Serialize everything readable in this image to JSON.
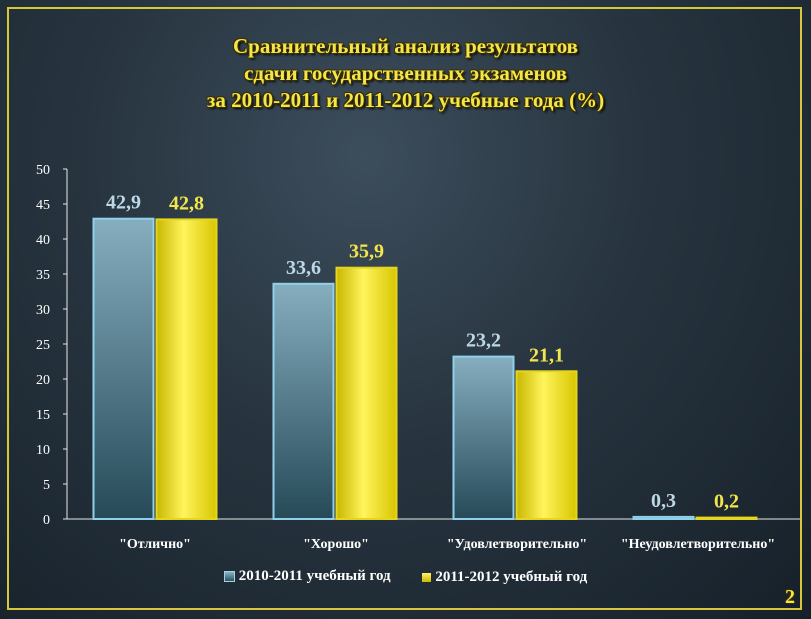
{
  "title": {
    "line1": "Сравнительный анализ результатов",
    "line2": "сдачи государственных экзаменов",
    "line3": "за 2010-2011 и 2011-2012 учебные года (%)"
  },
  "page_number": "2",
  "colors": {
    "series1": "#6f97a6",
    "series2": "#f2e22c",
    "label1": "#bcd8e6",
    "label2": "#f3e64a",
    "frame": "#d9c63a"
  },
  "chart_data": {
    "type": "bar",
    "title": "Сравнительный анализ результатов сдачи государственных экзаменов за 2010-2011 и 2011-2012 учебные года (%)",
    "categories": [
      "\"Отлично\"",
      "\"Хорошо\"",
      "\"Удовлетворительно\"",
      "\"Неудовлетворительно\""
    ],
    "series": [
      {
        "name": "2010-2011 учебный год",
        "values": [
          42.9,
          33.6,
          23.2,
          0.3
        ],
        "labels": [
          "42,9",
          "33,6",
          "23,2",
          "0,3"
        ]
      },
      {
        "name": "2011-2012 учебный год",
        "values": [
          42.8,
          35.9,
          21.1,
          0.2
        ],
        "labels": [
          "42,8",
          "35,9",
          "21,1",
          "0,2"
        ]
      }
    ],
    "ylim": [
      0,
      50
    ],
    "yticks": [
      0,
      5,
      10,
      15,
      20,
      25,
      30,
      35,
      40,
      45,
      50
    ],
    "grid": false,
    "legend": "bottom"
  }
}
